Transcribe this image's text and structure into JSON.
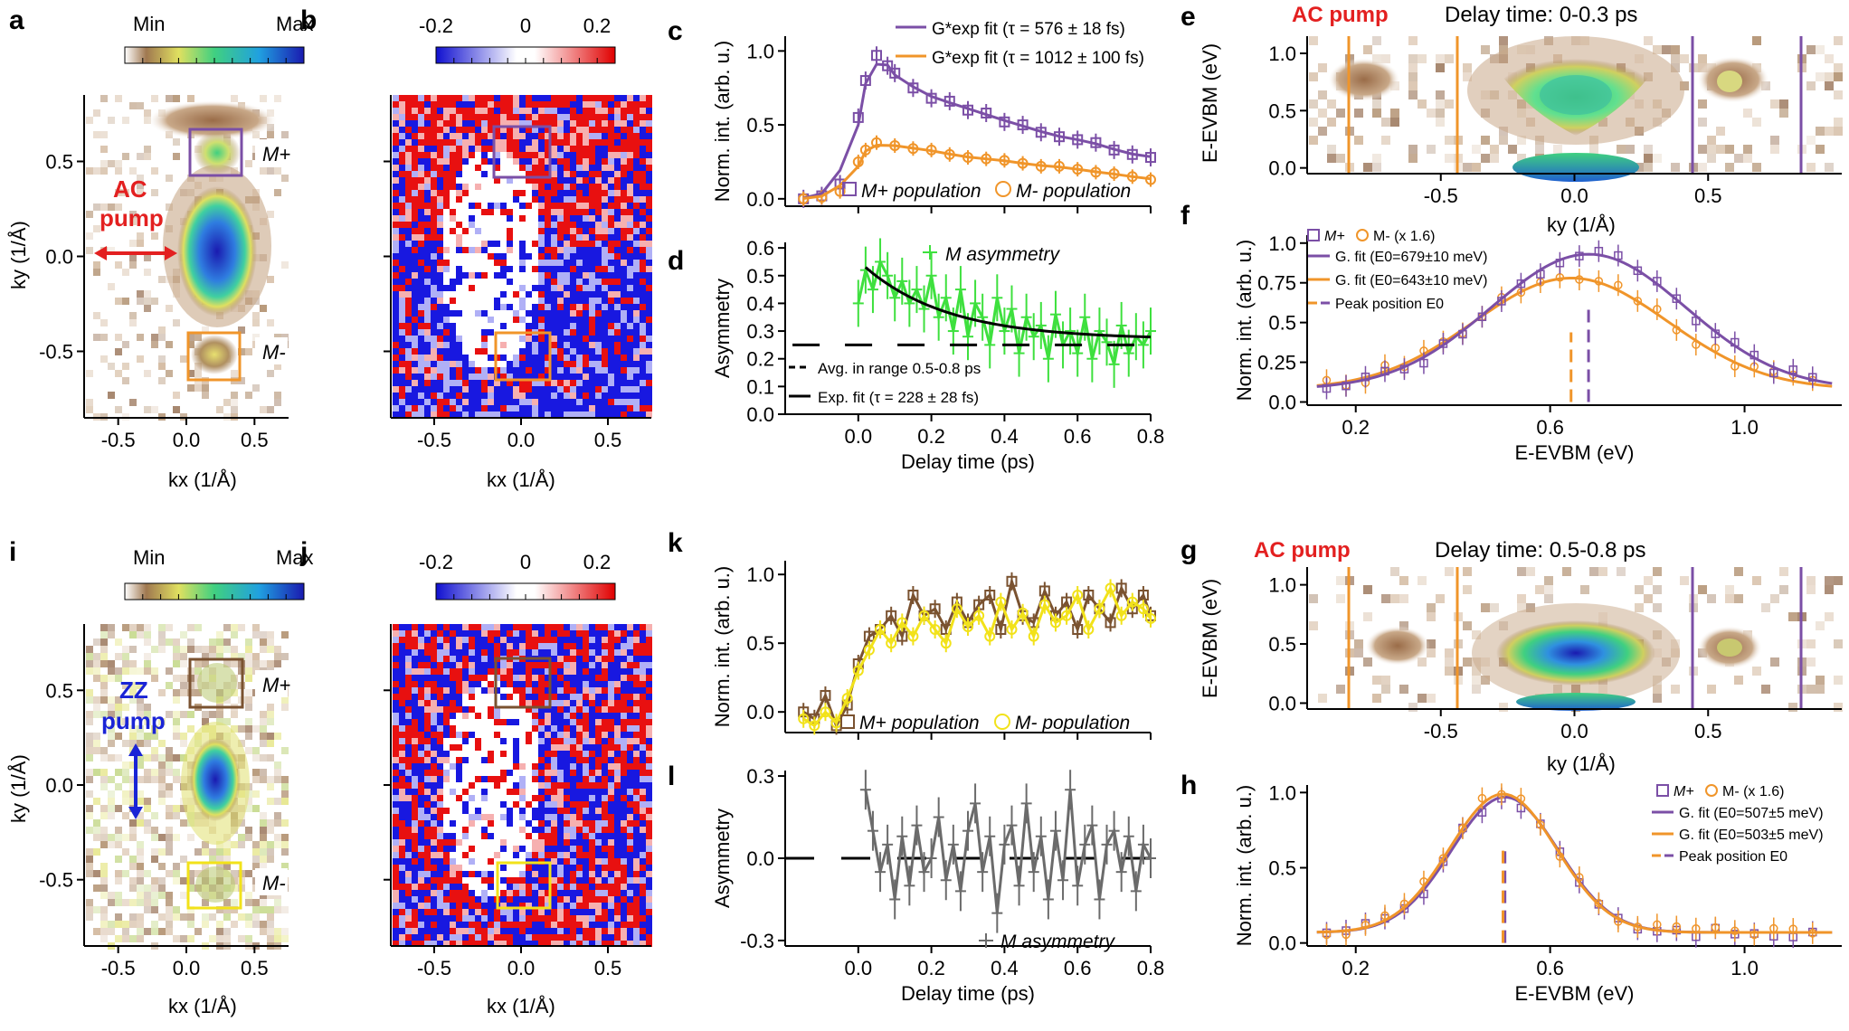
{
  "colors": {
    "purple": "#7b4fa6",
    "orange": "#f0952a",
    "brown": "#7a5230",
    "yellow": "#f2e21a",
    "green": "#3ee03e",
    "gray": "#6b6b6b",
    "red": "#e32020",
    "blue": "#1a24d6"
  },
  "panels": {
    "a": {
      "letter": "a",
      "cb_min": "Min",
      "cb_max": "Max",
      "label_plus": "M+",
      "label_minus": "M-",
      "pump1": "AC",
      "pump2": "pump",
      "xlabel": "kx (1/Å)",
      "ylabel": "ky (1/Å)"
    },
    "b": {
      "letter": "b",
      "xlabel": "kx (1/Å)"
    },
    "c": {
      "letter": "c"
    },
    "d": {
      "letter": "d"
    },
    "e": {
      "letter": "e",
      "pump": "AC pump",
      "title": "Delay time: 0-0.3 ps",
      "xlabel": "ky (1/Å)",
      "ylabel": "E-EVBM (eV)"
    },
    "f": {
      "letter": "f"
    },
    "i": {
      "letter": "i",
      "cb_min": "Min",
      "cb_max": "Max",
      "label_plus": "M+",
      "label_minus": "M-",
      "pump1": "ZZ",
      "pump2": "pump",
      "xlabel": "kx (1/Å)",
      "ylabel": "ky (1/Å)"
    },
    "j": {
      "letter": "j",
      "xlabel": "kx (1/Å)"
    },
    "k": {
      "letter": "k"
    },
    "l": {
      "letter": "l"
    },
    "g": {
      "letter": "g",
      "pump": "AC pump",
      "title": "Delay time: 0.5-0.8 ps",
      "xlabel": "ky (1/Å)",
      "ylabel": "E-EVBM (eV)"
    },
    "h": {
      "letter": "h"
    }
  },
  "chart_data": [
    {
      "panel": "c",
      "type": "line",
      "xlabel": "",
      "ylabel": "Norm. int. (arb. u.)",
      "xlim": [
        -0.2,
        0.8
      ],
      "ylim": [
        -0.05,
        1.1
      ],
      "xticks": [
        "0.0",
        "0.2",
        "0.4",
        "0.6",
        "0.8"
      ],
      "yticks": [
        "0.0",
        "0.5",
        "1.0"
      ],
      "legend_top": [
        "G*exp fit (τ = 576 ± 18 fs)",
        "G*exp fit (τ = 1012 ± 100 fs)"
      ],
      "legend_bottom": [
        "M+ population",
        "M- population"
      ],
      "series": [
        {
          "name": "M+ population",
          "color": "purple",
          "x": [
            -0.15,
            -0.1,
            -0.05,
            0,
            0.02,
            0.05,
            0.08,
            0.1,
            0.15,
            0.2,
            0.25,
            0.3,
            0.35,
            0.4,
            0.45,
            0.5,
            0.55,
            0.6,
            0.65,
            0.7,
            0.75,
            0.8
          ],
          "y": [
            0.0,
            0.02,
            0.1,
            0.55,
            0.8,
            0.97,
            0.9,
            0.85,
            0.75,
            0.68,
            0.66,
            0.6,
            0.58,
            0.52,
            0.5,
            0.45,
            0.42,
            0.4,
            0.38,
            0.33,
            0.3,
            0.28
          ]
        },
        {
          "name": "M- population",
          "color": "orange",
          "x": [
            -0.15,
            -0.1,
            -0.05,
            0,
            0.02,
            0.05,
            0.1,
            0.15,
            0.2,
            0.25,
            0.3,
            0.35,
            0.4,
            0.45,
            0.5,
            0.55,
            0.6,
            0.65,
            0.7,
            0.75,
            0.8
          ],
          "y": [
            0.0,
            0.01,
            0.05,
            0.25,
            0.33,
            0.38,
            0.36,
            0.34,
            0.33,
            0.3,
            0.28,
            0.27,
            0.26,
            0.24,
            0.22,
            0.22,
            0.2,
            0.18,
            0.17,
            0.15,
            0.13
          ]
        }
      ]
    },
    {
      "panel": "d",
      "type": "line",
      "xlabel": "Delay time (ps)",
      "ylabel": "Asymmetry",
      "xlim": [
        -0.2,
        0.8
      ],
      "ylim": [
        0.0,
        0.62
      ],
      "xticks": [
        "0.0",
        "0.2",
        "0.4",
        "0.6",
        "0.8"
      ],
      "yticks": [
        "0.0",
        "0.1",
        "0.2",
        "0.3",
        "0.4",
        "0.5",
        "0.6"
      ],
      "legend": [
        "M asymmetry",
        "Avg. in range 0.5-0.8 ps",
        "Exp. fit (τ = 228 ± 28 fs)"
      ],
      "series": [
        {
          "name": "M asymmetry",
          "color": "green",
          "x": [
            0,
            0.02,
            0.04,
            0.06,
            0.08,
            0.1,
            0.12,
            0.14,
            0.16,
            0.18,
            0.2,
            0.22,
            0.24,
            0.26,
            0.28,
            0.3,
            0.32,
            0.34,
            0.36,
            0.38,
            0.4,
            0.42,
            0.44,
            0.46,
            0.48,
            0.5,
            0.52,
            0.54,
            0.56,
            0.58,
            0.6,
            0.62,
            0.64,
            0.66,
            0.68,
            0.7,
            0.72,
            0.74,
            0.76,
            0.78,
            0.8
          ],
          "y": [
            0.4,
            0.52,
            0.45,
            0.55,
            0.5,
            0.42,
            0.48,
            0.4,
            0.45,
            0.38,
            0.5,
            0.35,
            0.42,
            0.3,
            0.45,
            0.28,
            0.4,
            0.35,
            0.25,
            0.42,
            0.3,
            0.38,
            0.22,
            0.35,
            0.28,
            0.32,
            0.2,
            0.36,
            0.25,
            0.3,
            0.22,
            0.35,
            0.2,
            0.3,
            0.26,
            0.18,
            0.32,
            0.22,
            0.28,
            0.25,
            0.3
          ]
        },
        {
          "name": "Exp. fit",
          "color": "black",
          "fit": {
            "a": 0.27,
            "b": 0.26,
            "tau": 0.228,
            "x0": 0.02,
            "x1": 0.8
          }
        },
        {
          "name": "Avg",
          "color": "black",
          "value": 0.25
        }
      ]
    },
    {
      "panel": "f",
      "type": "line",
      "xlabel": "E-EVBM (eV)",
      "ylabel": "Norm. int. (arb. u.)",
      "xlim": [
        0.1,
        1.2
      ],
      "ylim": [
        -0.02,
        1.05
      ],
      "xticks": [
        "0.2",
        "0.6",
        "1.0"
      ],
      "yticks": [
        "0.0",
        "0.25",
        "0.5",
        "0.75",
        "1.0"
      ],
      "legend": [
        "M+",
        "M- (x 1.6)",
        "G. fit (E0=679±10 meV)",
        "G. fit (E0=643±10 meV)",
        "Peak position E0"
      ],
      "series": [
        {
          "name": "M+ gaussian",
          "color": "purple",
          "E0": 0.679,
          "sigma": 0.2,
          "amp": 0.85,
          "base": 0.08
        },
        {
          "name": "M- gaussian",
          "color": "orange",
          "E0": 0.643,
          "sigma": 0.2,
          "amp": 0.7,
          "base": 0.08
        }
      ]
    },
    {
      "panel": "k",
      "type": "line",
      "xlabel": "",
      "ylabel": "Norm. int. (arb. u.)",
      "xlim": [
        -0.2,
        0.8
      ],
      "ylim": [
        -0.15,
        1.1
      ],
      "xticks": [
        "0.0",
        "0.2",
        "0.4",
        "0.6",
        "0.8"
      ],
      "yticks": [
        "0.0",
        "0.5",
        "1.0"
      ],
      "legend": [
        "M+ population",
        "M- population"
      ],
      "series": [
        {
          "name": "M+ population",
          "color": "brown",
          "x": [
            -0.15,
            -0.12,
            -0.09,
            -0.06,
            -0.03,
            0,
            0.03,
            0.06,
            0.09,
            0.12,
            0.15,
            0.18,
            0.21,
            0.24,
            0.27,
            0.3,
            0.33,
            0.36,
            0.39,
            0.42,
            0.45,
            0.48,
            0.51,
            0.54,
            0.57,
            0.6,
            0.63,
            0.66,
            0.69,
            0.72,
            0.75,
            0.78,
            0.8
          ],
          "y": [
            0.0,
            -0.05,
            0.12,
            -0.1,
            0.05,
            0.35,
            0.55,
            0.6,
            0.7,
            0.55,
            0.85,
            0.7,
            0.75,
            0.6,
            0.8,
            0.65,
            0.78,
            0.85,
            0.6,
            0.95,
            0.7,
            0.65,
            0.88,
            0.7,
            0.8,
            0.6,
            0.85,
            0.75,
            0.65,
            0.9,
            0.75,
            0.85,
            0.7
          ]
        },
        {
          "name": "M- population",
          "color": "yellow",
          "x": [
            -0.15,
            -0.12,
            -0.09,
            -0.06,
            -0.03,
            0,
            0.03,
            0.06,
            0.09,
            0.12,
            0.15,
            0.18,
            0.21,
            0.24,
            0.27,
            0.3,
            0.33,
            0.36,
            0.39,
            0.42,
            0.45,
            0.48,
            0.51,
            0.54,
            0.57,
            0.6,
            0.63,
            0.66,
            0.69,
            0.72,
            0.75,
            0.78,
            0.8
          ],
          "y": [
            -0.05,
            -0.1,
            0.0,
            -0.08,
            0.1,
            0.3,
            0.45,
            0.6,
            0.5,
            0.65,
            0.55,
            0.7,
            0.6,
            0.5,
            0.75,
            0.62,
            0.7,
            0.55,
            0.8,
            0.6,
            0.72,
            0.55,
            0.78,
            0.65,
            0.7,
            0.85,
            0.6,
            0.75,
            0.9,
            0.7,
            0.8,
            0.75,
            0.68
          ]
        }
      ]
    },
    {
      "panel": "l",
      "type": "line",
      "xlabel": "Delay time (ps)",
      "ylabel": "Asymmetry",
      "xlim": [
        -0.2,
        0.8
      ],
      "ylim": [
        -0.32,
        0.32
      ],
      "xticks": [
        "0.0",
        "0.2",
        "0.4",
        "0.6",
        "0.8"
      ],
      "yticks": [
        "-0.3",
        "0.0",
        "0.3"
      ],
      "legend": [
        "M asymmetry"
      ],
      "series": [
        {
          "name": "M asymmetry",
          "color": "gray",
          "x": [
            0.02,
            0.04,
            0.06,
            0.08,
            0.1,
            0.12,
            0.14,
            0.16,
            0.18,
            0.2,
            0.22,
            0.24,
            0.26,
            0.28,
            0.3,
            0.32,
            0.34,
            0.36,
            0.38,
            0.4,
            0.42,
            0.44,
            0.46,
            0.48,
            0.5,
            0.52,
            0.54,
            0.56,
            0.58,
            0.6,
            0.62,
            0.64,
            0.66,
            0.68,
            0.7,
            0.72,
            0.74,
            0.76,
            0.78,
            0.8
          ],
          "y": [
            0.25,
            0.1,
            -0.05,
            0.05,
            -0.15,
            0.08,
            -0.1,
            0.12,
            -0.05,
            0.0,
            0.15,
            -0.08,
            0.05,
            -0.12,
            0.1,
            0.2,
            -0.05,
            0.08,
            -0.2,
            0.05,
            0.12,
            -0.1,
            0.2,
            -0.05,
            0.08,
            -0.15,
            0.1,
            -0.08,
            0.25,
            -0.1,
            0.05,
            0.12,
            -0.15,
            0.05,
            0.1,
            -0.05,
            0.08,
            -0.12,
            0.05,
            0.0
          ]
        },
        {
          "name": "zero",
          "color": "black",
          "value": 0.0
        }
      ]
    },
    {
      "panel": "h",
      "type": "line",
      "xlabel": "E-EVBM (eV)",
      "ylabel": "Norm. int. (arb. u.)",
      "xlim": [
        0.1,
        1.2
      ],
      "ylim": [
        -0.02,
        1.05
      ],
      "xticks": [
        "0.2",
        "0.6",
        "1.0"
      ],
      "yticks": [
        "0.0",
        "0.5",
        "1.0"
      ],
      "legend": [
        "M+",
        "M- (x 1.6)",
        "G. fit (E0=507±5 meV)",
        "G. fit (E0=503±5 meV)",
        "Peak position E0"
      ],
      "series": [
        {
          "name": "M+ gaussian",
          "color": "purple",
          "E0": 0.507,
          "sigma": 0.11,
          "amp": 0.9,
          "base": 0.07
        },
        {
          "name": "M- gaussian",
          "color": "orange",
          "E0": 0.503,
          "sigma": 0.11,
          "amp": 0.92,
          "base": 0.07
        }
      ]
    }
  ]
}
